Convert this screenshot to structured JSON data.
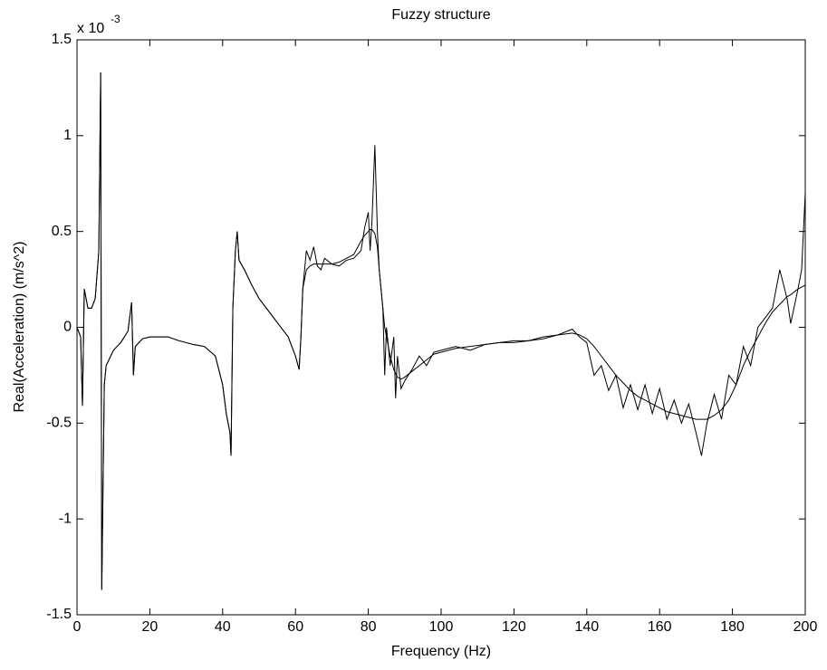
{
  "chart_data": {
    "type": "line",
    "title": "Fuzzy structure",
    "x_label": "Frequency (Hz)",
    "y_label": "Real(Acceleration) (m/s^2)",
    "y_multiplier": {
      "base": "x 10",
      "exponent": "-3"
    },
    "x": [
      0,
      1,
      1.5,
      2,
      2.5,
      3,
      4,
      5,
      6,
      6.5,
      6.8,
      7.5,
      8,
      10,
      12,
      14,
      15,
      15.5,
      16,
      18,
      20,
      25,
      28,
      30,
      32,
      35,
      38,
      40,
      41,
      42,
      42.3,
      42.8,
      43.5,
      44,
      44.5,
      46,
      48,
      50,
      52,
      54,
      56,
      58,
      60,
      61,
      61.5,
      62,
      63,
      64,
      65,
      66,
      67,
      68,
      70,
      72,
      74,
      76,
      78,
      79,
      80,
      80.5,
      81,
      81.8,
      82.5,
      83,
      84,
      84.5,
      85,
      86,
      87,
      87.5,
      88,
      89,
      90,
      92,
      94,
      96,
      98,
      100,
      104,
      108,
      112,
      116,
      120,
      124,
      128,
      132,
      136,
      138,
      140,
      142,
      144,
      146,
      148,
      150,
      152,
      154,
      156,
      158,
      160,
      162,
      164,
      166,
      168,
      170,
      171.5,
      173,
      175,
      177,
      179,
      181,
      183,
      185,
      187,
      189,
      191,
      193,
      195,
      196,
      198,
      199,
      200
    ],
    "series": [
      {
        "color": "#000000",
        "values": [
          0,
          -0.05,
          -0.41,
          0.2,
          0.15,
          0.1,
          0.1,
          0.15,
          0.4,
          1.33,
          -1.37,
          -0.3,
          -0.2,
          -0.12,
          -0.08,
          -0.02,
          0.13,
          -0.25,
          -0.1,
          -0.06,
          -0.05,
          -0.05,
          -0.07,
          -0.08,
          -0.09,
          -0.1,
          -0.15,
          -0.3,
          -0.45,
          -0.55,
          -0.67,
          0.1,
          0.4,
          0.5,
          0.35,
          0.3,
          0.22,
          0.15,
          0.1,
          0.05,
          0,
          -0.05,
          -0.15,
          -0.22,
          -0.05,
          0.2,
          0.4,
          0.35,
          0.42,
          0.32,
          0.3,
          0.36,
          0.33,
          0.32,
          0.35,
          0.36,
          0.4,
          0.52,
          0.6,
          0.4,
          0.55,
          0.95,
          0.5,
          0.3,
          0.1,
          -0.25,
          0,
          -0.2,
          -0.05,
          -0.37,
          -0.15,
          -0.32,
          -0.28,
          -0.22,
          -0.15,
          -0.2,
          -0.13,
          -0.12,
          -0.1,
          -0.12,
          -0.09,
          -0.08,
          -0.07,
          -0.07,
          -0.05,
          -0.04,
          -0.01,
          -0.05,
          -0.08,
          -0.25,
          -0.2,
          -0.33,
          -0.25,
          -0.42,
          -0.3,
          -0.43,
          -0.3,
          -0.45,
          -0.32,
          -0.48,
          -0.38,
          -0.5,
          -0.4,
          -0.55,
          -0.67,
          -0.5,
          -0.35,
          -0.48,
          -0.25,
          -0.3,
          -0.1,
          -0.2,
          0,
          0.05,
          0.1,
          0.3,
          0.15,
          0.02,
          0.2,
          0.3,
          0.7
        ]
      },
      {
        "color": "#000000",
        "values": [
          0,
          -0.05,
          -0.41,
          0.2,
          0.15,
          0.1,
          0.1,
          0.15,
          0.4,
          1.33,
          -1.37,
          -0.3,
          -0.2,
          -0.12,
          -0.08,
          -0.02,
          0.13,
          -0.25,
          -0.1,
          -0.06,
          -0.05,
          -0.05,
          -0.07,
          -0.08,
          -0.09,
          -0.1,
          -0.15,
          -0.3,
          -0.45,
          -0.55,
          -0.67,
          0.1,
          0.4,
          0.5,
          0.35,
          0.3,
          0.22,
          0.15,
          0.1,
          0.05,
          0,
          -0.05,
          -0.15,
          -0.22,
          -0.05,
          0.2,
          0.3,
          0.32,
          0.33,
          0.33,
          0.33,
          0.33,
          0.33,
          0.34,
          0.36,
          0.38,
          0.45,
          0.48,
          0.5,
          0.51,
          0.51,
          0.49,
          0.42,
          0.3,
          0.1,
          0,
          -0.05,
          -0.15,
          -0.22,
          -0.24,
          -0.26,
          -0.27,
          -0.26,
          -0.23,
          -0.2,
          -0.17,
          -0.14,
          -0.13,
          -0.11,
          -0.1,
          -0.09,
          -0.08,
          -0.08,
          -0.07,
          -0.06,
          -0.04,
          -0.03,
          -0.04,
          -0.06,
          -0.1,
          -0.15,
          -0.2,
          -0.25,
          -0.29,
          -0.33,
          -0.36,
          -0.38,
          -0.4,
          -0.42,
          -0.44,
          -0.45,
          -0.46,
          -0.47,
          -0.48,
          -0.48,
          -0.48,
          -0.46,
          -0.43,
          -0.38,
          -0.3,
          -0.2,
          -0.12,
          -0.05,
          0.02,
          0.08,
          0.12,
          0.16,
          0.17,
          0.2,
          0.21,
          0.22
        ]
      }
    ],
    "xlim": [
      0,
      200
    ],
    "ylim": [
      -1.5,
      1.5
    ],
    "xticks": [
      0,
      20,
      40,
      60,
      80,
      100,
      120,
      140,
      160,
      180,
      200
    ],
    "yticks": [
      -1.5,
      -1,
      -0.5,
      0,
      0.5,
      1,
      1.5
    ],
    "grid": false
  }
}
